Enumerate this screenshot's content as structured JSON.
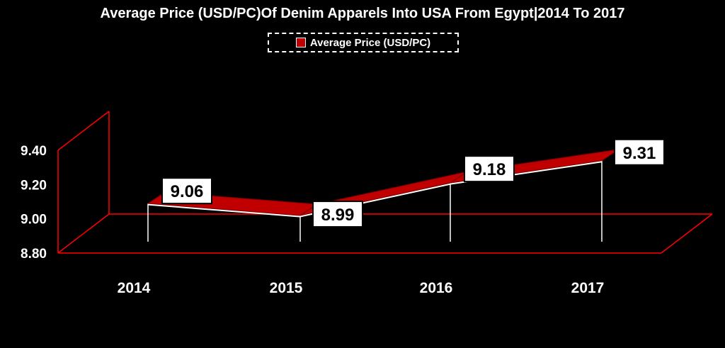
{
  "chart_data": {
    "type": "line",
    "title": "Average Price (USD/PC)Of Denim Apparels Into USA From Egypt|2014 To 2017",
    "categories": [
      "2014",
      "2015",
      "2016",
      "2017"
    ],
    "series": [
      {
        "name": "Average Price (USD/PC)",
        "values": [
          9.06,
          8.99,
          9.18,
          9.31
        ]
      }
    ],
    "data_labels": [
      "9.06",
      "8.99",
      "9.18",
      "9.31"
    ],
    "y_ticks": [
      "8.80",
      "9.00",
      "9.20",
      "9.40"
    ],
    "ylim": [
      8.8,
      9.4
    ],
    "legend_position": "top",
    "grid": false,
    "colors": {
      "series": "#c00000",
      "background": "#000000",
      "axis": "#ff0000",
      "text": "#ffffff"
    }
  }
}
